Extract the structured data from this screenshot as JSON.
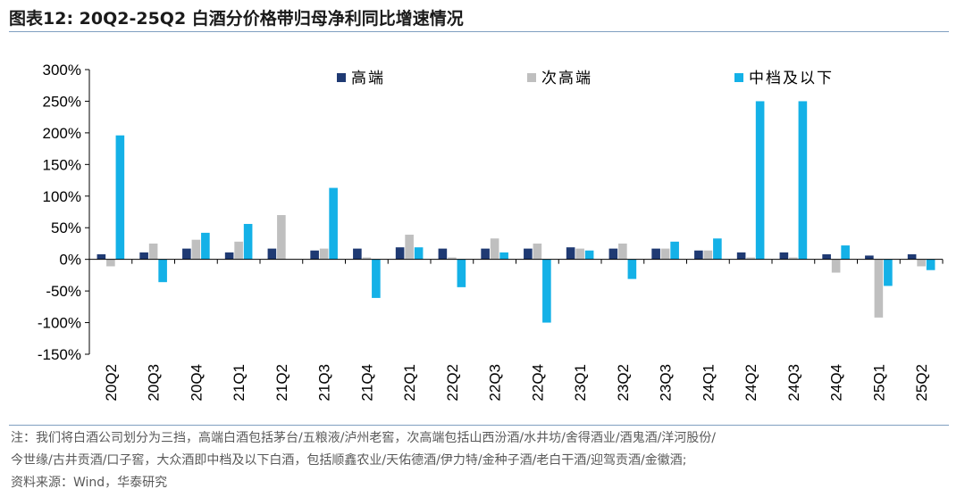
{
  "title": "图表12:  20Q2-25Q2 白酒分价格带归母净利同比增速情况",
  "notes": {
    "line1": "注：我们将白酒公司划分为三挡，高端白酒包括茅台/五粮液/泸州老窖，次高端包括山西汾酒/水井坊/舍得酒业/酒鬼酒/洋河股份/",
    "line2": "今世缘/古井贡酒/口子窖，大众酒即中档及以下白酒，包括顺鑫农业/天佑德酒/伊力特/金种子酒/老白干酒/迎驾贡酒/金徽酒;",
    "line3": "资料来源：Wind，华泰研究"
  },
  "chart_data": {
    "type": "bar",
    "categories": [
      "20Q2",
      "20Q3",
      "20Q4",
      "21Q1",
      "21Q2",
      "21Q3",
      "21Q4",
      "22Q1",
      "22Q2",
      "22Q3",
      "22Q4",
      "23Q1",
      "23Q2",
      "23Q3",
      "24Q1",
      "24Q2",
      "24Q3",
      "24Q4",
      "25Q1",
      "25Q2"
    ],
    "ylim": [
      -150,
      300
    ],
    "yticks": [
      -150,
      -100,
      -50,
      0,
      50,
      100,
      150,
      200,
      250,
      300
    ],
    "ytick_labels": [
      "-150%",
      "-100%",
      "-50%",
      "0%",
      "50%",
      "100%",
      "150%",
      "200%",
      "250%",
      "300%"
    ],
    "legend_position": "top",
    "grid": false,
    "series": [
      {
        "name": "高端",
        "color": "#1f3a73",
        "values": [
          8,
          11,
          17,
          11,
          17,
          14,
          17,
          19,
          17,
          17,
          17,
          19,
          17,
          17,
          14,
          11,
          11,
          8,
          6,
          8
        ]
      },
      {
        "name": "次高端",
        "color": "#bfbfbf",
        "values": [
          -11,
          25,
          31,
          28,
          70,
          17,
          3,
          39,
          3,
          33,
          25,
          17,
          25,
          17,
          14,
          3,
          3,
          -21,
          -92,
          -11
        ]
      },
      {
        "name": "中档及以下",
        "color": "#14b1e7",
        "values": [
          196,
          -36,
          42,
          56,
          0,
          113,
          -61,
          19,
          -44,
          11,
          -100,
          14,
          -31,
          28,
          33,
          250,
          250,
          22,
          -42,
          -17
        ]
      }
    ]
  }
}
